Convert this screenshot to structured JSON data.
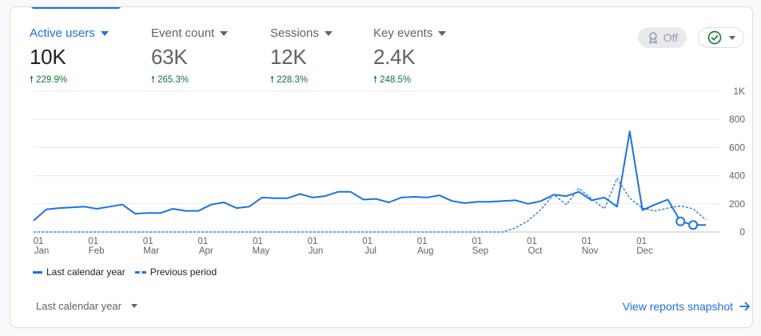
{
  "metrics": [
    {
      "label": "Active users",
      "value": "10K",
      "change": "229.9%"
    },
    {
      "label": "Event count",
      "value": "63K",
      "change": "265.3%"
    },
    {
      "label": "Sessions",
      "value": "12K",
      "change": "228.3%"
    },
    {
      "label": "Key events",
      "value": "2.4K",
      "change": "248.5%"
    }
  ],
  "toggle": {
    "label": "Off"
  },
  "chart_data": {
    "type": "line",
    "y_ticks": [
      "1K",
      "800",
      "600",
      "400",
      "200",
      "0"
    ],
    "ylim": [
      0,
      1000
    ],
    "x_ticks": [
      {
        "day": "01",
        "month": "Jan"
      },
      {
        "day": "01",
        "month": "Feb"
      },
      {
        "day": "01",
        "month": "Mar"
      },
      {
        "day": "01",
        "month": "Apr"
      },
      {
        "day": "01",
        "month": "May"
      },
      {
        "day": "01",
        "month": "Jun"
      },
      {
        "day": "01",
        "month": "Jul"
      },
      {
        "day": "01",
        "month": "Aug"
      },
      {
        "day": "01",
        "month": "Sep"
      },
      {
        "day": "01",
        "month": "Oct"
      },
      {
        "day": "01",
        "month": "Nov"
      },
      {
        "day": "01",
        "month": "Dec"
      }
    ],
    "series": [
      {
        "name": "Last calendar year",
        "style": "solid",
        "color": "#1a73e8",
        "values": [
          80,
          160,
          170,
          175,
          180,
          165,
          180,
          195,
          130,
          135,
          135,
          165,
          150,
          150,
          195,
          210,
          170,
          180,
          245,
          240,
          240,
          270,
          245,
          255,
          285,
          285,
          230,
          235,
          210,
          245,
          250,
          245,
          260,
          220,
          205,
          215,
          215,
          220,
          225,
          200,
          220,
          265,
          255,
          285,
          225,
          245,
          180,
          715,
          155,
          195,
          230,
          75,
          50,
          50
        ]
      },
      {
        "name": "Previous period",
        "style": "dashed",
        "color": "#1a73e8",
        "values": [
          0,
          0,
          0,
          0,
          0,
          0,
          0,
          0,
          0,
          0,
          0,
          0,
          0,
          0,
          0,
          0,
          0,
          0,
          0,
          0,
          0,
          0,
          0,
          0,
          0,
          0,
          0,
          0,
          0,
          0,
          0,
          0,
          0,
          0,
          0,
          0,
          0,
          0,
          30,
          80,
          160,
          265,
          195,
          310,
          235,
          165,
          380,
          240,
          170,
          150,
          170,
          185,
          165,
          85
        ]
      }
    ],
    "legend": "bottom-left",
    "grid": true
  },
  "legend": [
    {
      "label": "Last calendar year"
    },
    {
      "label": "Previous period"
    }
  ],
  "footer": {
    "date_range": "Last calendar year",
    "view_link": "View reports snapshot"
  }
}
